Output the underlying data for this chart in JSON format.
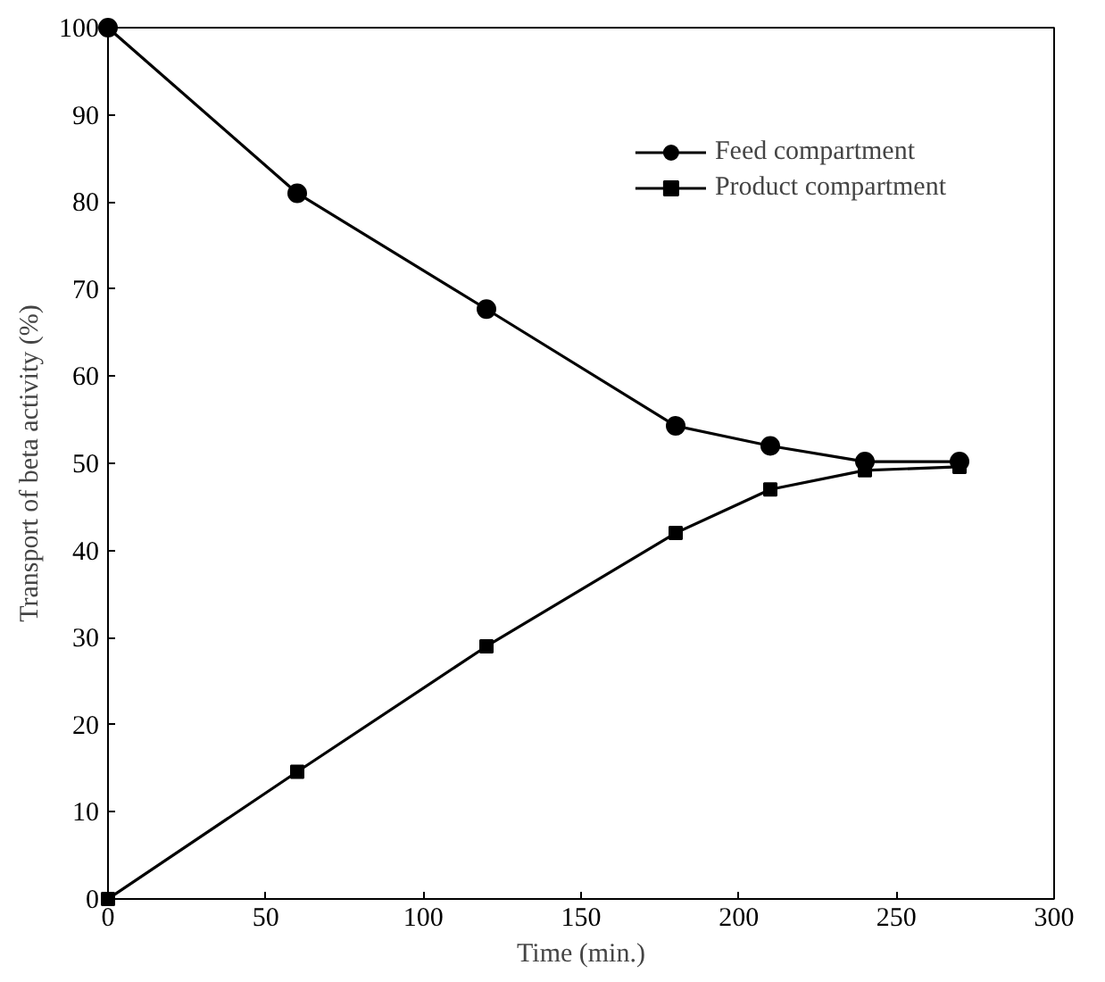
{
  "chart_data": {
    "type": "line",
    "xlabel": "Time (min.)",
    "ylabel": "Transport of beta activity (%)",
    "x": [
      0,
      60,
      120,
      180,
      210,
      240,
      270
    ],
    "series": [
      {
        "name": "Feed compartment",
        "color": "#000000",
        "marker": "circle",
        "values": [
          100,
          81,
          67.7,
          54.3,
          52,
          50.2,
          50.2
        ]
      },
      {
        "name": "Product compartment",
        "color": "#000000",
        "marker": "square",
        "values": [
          0,
          14.6,
          29,
          42,
          47,
          49.2,
          49.6
        ]
      }
    ],
    "xlim": [
      0,
      300
    ],
    "ylim": [
      0,
      100
    ],
    "xticks": [
      0,
      50,
      100,
      150,
      200,
      250,
      300
    ],
    "yticks": [
      0,
      10,
      20,
      30,
      40,
      50,
      60,
      70,
      80,
      90,
      100
    ],
    "grid": false,
    "legend": "top right",
    "line_style": "solid"
  }
}
